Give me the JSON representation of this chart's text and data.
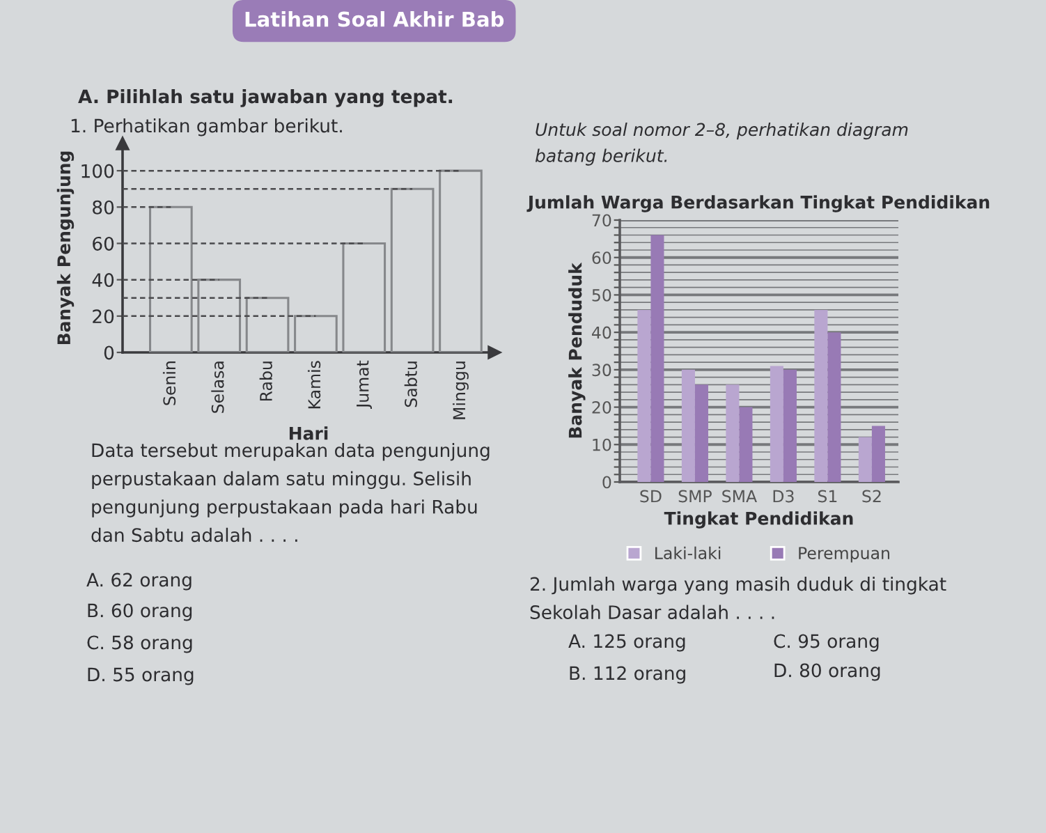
{
  "chart_data": [
    {
      "type": "bar",
      "categories": [
        "Senin",
        "Selasa",
        "Rabu",
        "Kamis",
        "Jumat",
        "Sabtu",
        "Minggu"
      ],
      "values": [
        80,
        40,
        30,
        20,
        60,
        90,
        100
      ],
      "color": "#86888b",
      "xlabel": "Hari",
      "ylabel": "Banyak Pengunjung",
      "ylim": [
        0,
        115
      ],
      "yticks": [
        0,
        20,
        40,
        60,
        80,
        100
      ],
      "ref_lines": [
        {
          "axis": "y",
          "value": 100,
          "line_style": "dashed"
        },
        {
          "axis": "y",
          "value": 90,
          "line_style": "dashed"
        },
        {
          "axis": "y",
          "value": 80,
          "line_style": "dashed"
        },
        {
          "axis": "y",
          "value": 60,
          "line_style": "dashed"
        },
        {
          "axis": "y",
          "value": 40,
          "line_style": "dashed"
        },
        {
          "axis": "y",
          "value": 30,
          "line_style": "dashed"
        },
        {
          "axis": "y",
          "value": 20,
          "line_style": "dashed"
        }
      ],
      "annotations": [
        "Latihan Soal Akhir Bab",
        "A. Pilihlah satu jawaban yang tepat.",
        "1. Perhatikan gambar berikut.",
        "Data tersebut merupakan data pengunjung\nperpustakaan dalam satu minggu. Selisih\npengunjung perpustakaan pada hari Rabu\ndan Sabtu adalah . . . .",
        "A. 62 orang",
        "B. 60 orang",
        "C. 58 orang",
        "D. 55 orang"
      ]
    },
    {
      "type": "bar",
      "title": "Jumlah Warga Berdasarkan Tingkat Pendidikan",
      "categories": [
        "SD",
        "SMP",
        "SMA",
        "D3",
        "S1",
        "S2"
      ],
      "series": [
        {
          "name": "Laki-laki",
          "color": "#b9a6d0",
          "values": [
            46,
            30,
            26,
            31,
            46,
            12
          ]
        },
        {
          "name": "Perempuan",
          "color": "#987ab5",
          "values": [
            66,
            26,
            20,
            30,
            40,
            15
          ]
        }
      ],
      "xlabel": "Tingkat Pendidikan",
      "ylabel": "Banyak Penduduk",
      "ylim": [
        0,
        70
      ],
      "yticks": [
        0,
        {
          "value": 2,
          "label": null
        },
        {
          "value": 4,
          "label": null
        },
        {
          "value": 6,
          "label": null
        },
        {
          "value": 8,
          "label": null
        },
        10,
        {
          "value": 12,
          "label": null
        },
        {
          "value": 14,
          "label": null
        },
        {
          "value": 16,
          "label": null
        },
        {
          "value": 18,
          "label": null
        },
        20,
        {
          "value": 22,
          "label": null
        },
        {
          "value": 24,
          "label": null
        },
        {
          "value": 26,
          "label": null
        },
        {
          "value": 28,
          "label": null
        },
        30,
        {
          "value": 32,
          "label": null
        },
        {
          "value": 34,
          "label": null
        },
        {
          "value": 36,
          "label": null
        },
        {
          "value": 38,
          "label": null
        },
        40,
        {
          "value": 42,
          "label": null
        },
        {
          "value": 44,
          "label": null
        },
        {
          "value": 46,
          "label": null
        },
        {
          "value": 48,
          "label": null
        },
        50,
        {
          "value": 52,
          "label": null
        },
        {
          "value": 54,
          "label": null
        },
        {
          "value": 56,
          "label": null
        },
        {
          "value": 58,
          "label": null
        },
        60,
        {
          "value": 62,
          "label": null
        },
        {
          "value": 64,
          "label": null
        },
        {
          "value": 66,
          "label": null
        },
        {
          "value": 68,
          "label": null
        },
        70
      ],
      "grid": "y",
      "legend": "bottom",
      "annotations": [
        "Untuk soal nomor 2–8, perhatikan diagram\nbatang berikut.",
        "2. Jumlah warga yang masih duduk di tingkat\nSekolah Dasar adalah . . . .",
        "A. 125 orang",
        "B. 112 orang",
        "C. 95 orang",
        "D. 80 orang"
      ]
    }
  ]
}
